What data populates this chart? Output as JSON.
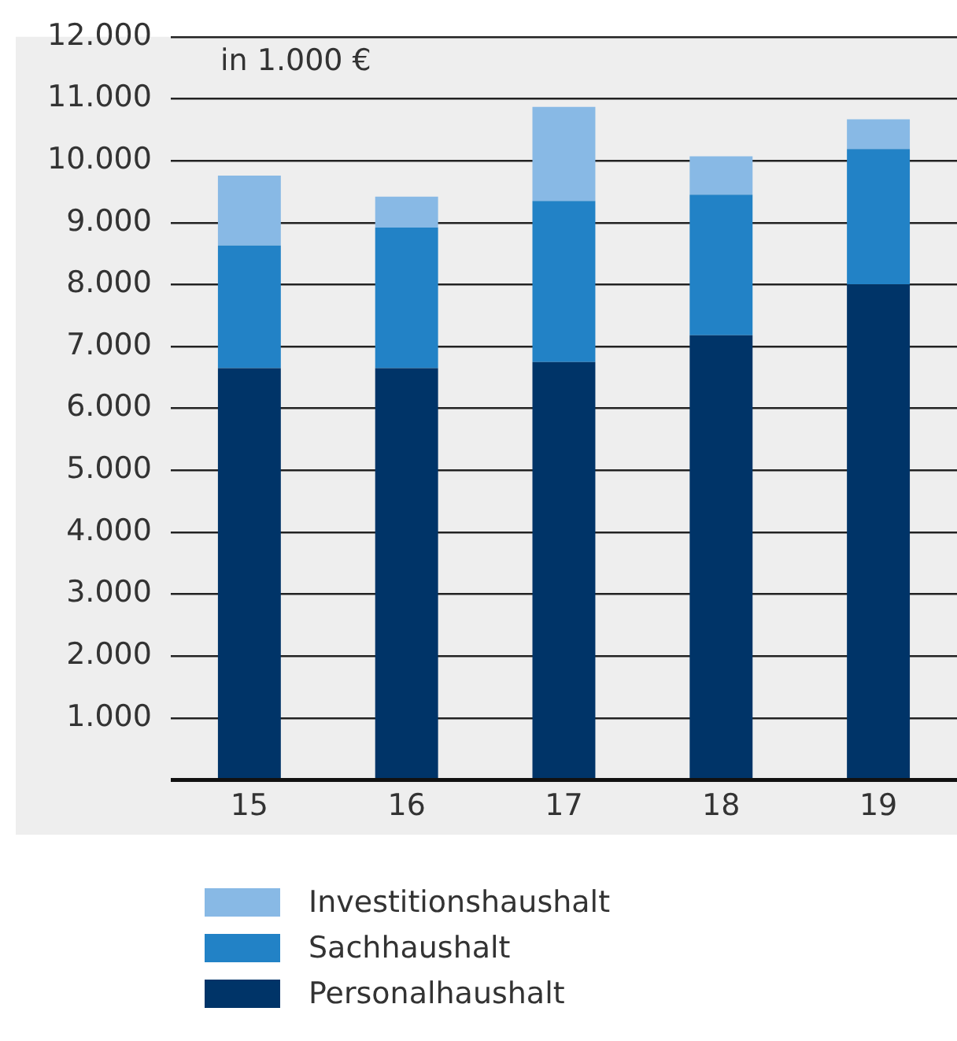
{
  "chart_data": {
    "type": "bar",
    "stacked": true,
    "categories": [
      "15",
      "16",
      "17",
      "18",
      "19"
    ],
    "series": [
      {
        "name": "Personalhaushalt",
        "color": "#003468",
        "values": [
          6650,
          6650,
          6750,
          7180,
          8000
        ]
      },
      {
        "name": "Sachhaushalt",
        "color": "#2282c6",
        "values": [
          1980,
          2270,
          2600,
          2270,
          2190
        ]
      },
      {
        "name": "Investitionshaushalt",
        "color": "#88b9e5",
        "values": [
          1130,
          500,
          1520,
          620,
          480
        ]
      }
    ],
    "ylim": [
      0,
      12000
    ],
    "yticks": [
      {
        "value": 1000,
        "label": "1.000"
      },
      {
        "value": 2000,
        "label": "2.000"
      },
      {
        "value": 3000,
        "label": "3.000"
      },
      {
        "value": 4000,
        "label": "4.000"
      },
      {
        "value": 5000,
        "label": "5.000"
      },
      {
        "value": 6000,
        "label": "6.000"
      },
      {
        "value": 7000,
        "label": "7.000"
      },
      {
        "value": 8000,
        "label": "8.000"
      },
      {
        "value": 9000,
        "label": "9.000"
      },
      {
        "value": 10000,
        "label": "10.000"
      },
      {
        "value": 11000,
        "label": "11.000"
      },
      {
        "value": 12000,
        "label": "12.000"
      }
    ],
    "grid": "y",
    "legend": "bottom",
    "annotations": [
      "in 1.000 €"
    ]
  }
}
